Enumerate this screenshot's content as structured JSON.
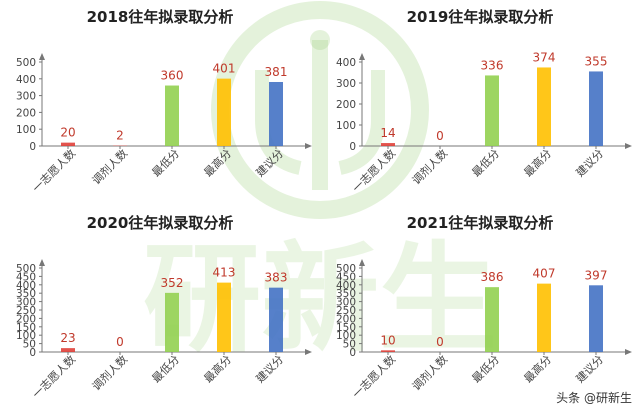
{
  "watermark": {
    "text": "研新生"
  },
  "footer": {
    "credit": "头条 @研新生"
  },
  "colors": {
    "axis": "#777777",
    "value_label": "#c0392b",
    "bars": [
      "#e0403a",
      "#e0403a",
      "#92d050",
      "#ffc000",
      "#4472c4"
    ],
    "watermark": "#9fd27f"
  },
  "chart_data": [
    {
      "type": "bar",
      "title": "2018往年拟录取分析",
      "categories": [
        "一志愿人数",
        "调剂人数",
        "最低分",
        "最高分",
        "建议分"
      ],
      "values": [
        20,
        2,
        360,
        401,
        381
      ],
      "yticks": [
        0,
        100,
        200,
        300,
        400,
        500
      ],
      "ylim": [
        0,
        500
      ],
      "grid": false,
      "legend": "none"
    },
    {
      "type": "bar",
      "title": "2019往年拟录取分析",
      "categories": [
        "一志愿人数",
        "调剂人数",
        "最低分",
        "最高分",
        "建议分"
      ],
      "values": [
        14,
        0,
        336,
        374,
        355
      ],
      "yticks": [
        0,
        100,
        200,
        300,
        400
      ],
      "ylim": [
        0,
        400
      ],
      "grid": false,
      "legend": "none"
    },
    {
      "type": "bar",
      "title": "2020往年拟录取分析",
      "categories": [
        "一志愿人数",
        "调剂人数",
        "最低分",
        "最高分",
        "建议分"
      ],
      "values": [
        23,
        0,
        352,
        413,
        383
      ],
      "yticks": [
        0,
        50,
        100,
        150,
        200,
        250,
        300,
        350,
        400,
        450,
        500
      ],
      "ylim": [
        0,
        500
      ],
      "grid": false,
      "legend": "none"
    },
    {
      "type": "bar",
      "title": "2021往年拟录取分析",
      "categories": [
        "一志愿人数",
        "调剂人数",
        "最低分",
        "最高分",
        "建议分"
      ],
      "values": [
        10,
        0,
        386,
        407,
        397
      ],
      "yticks": [
        0,
        50,
        100,
        150,
        200,
        250,
        300,
        350,
        400,
        450,
        500
      ],
      "ylim": [
        0,
        500
      ],
      "grid": false,
      "legend": "none"
    }
  ]
}
